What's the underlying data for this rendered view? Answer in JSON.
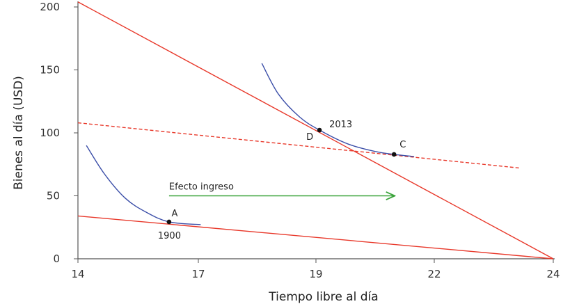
{
  "chart_data": {
    "type": "line",
    "xlabel": "Tiempo libre al día",
    "ylabel": "Bienes al día (USD)",
    "x_ticks": [
      14,
      17,
      19,
      22,
      24
    ],
    "y_ticks": [
      0,
      50,
      100,
      150,
      200
    ],
    "xlim": [
      14,
      24
    ],
    "ylim": [
      0,
      200
    ],
    "grid": false,
    "colors": {
      "budget": "#e8382a",
      "indifference": "#3b4ea8",
      "arrow": "#3aa33a",
      "axis": "#555555"
    },
    "budget_lines": [
      {
        "points": [
          [
            14,
            204
          ],
          [
            24,
            0
          ]
        ],
        "style": "solid"
      },
      {
        "points": [
          [
            14,
            34
          ],
          [
            24,
            0
          ]
        ],
        "style": "solid"
      },
      {
        "points": [
          [
            14,
            108
          ],
          [
            23.45,
            72
          ]
        ],
        "style": "dashed"
      }
    ],
    "indifference_curves": [
      {
        "points": [
          [
            14.21,
            90
          ],
          [
            14.66,
            67.4
          ],
          [
            15.18,
            48.1
          ],
          [
            15.7,
            37
          ],
          [
            16.27,
            29.3
          ],
          [
            17.04,
            27.1
          ]
        ]
      },
      {
        "points": [
          [
            18.08,
            155.2
          ],
          [
            18.36,
            130.9
          ],
          [
            18.72,
            112.7
          ],
          [
            19.09,
            102.2
          ],
          [
            19.81,
            91.2
          ],
          [
            20.52,
            85.1
          ],
          [
            20.98,
            82.9
          ],
          [
            21.49,
            81.2
          ]
        ]
      }
    ],
    "points": [
      {
        "label": "A",
        "year": "1900",
        "x": 16.27,
        "y": 29.3
      },
      {
        "label": "D",
        "year": "2013",
        "x": 19.09,
        "y": 102.2
      },
      {
        "label": "C",
        "year": "",
        "x": 20.98,
        "y": 82.9
      }
    ],
    "annotations": [
      {
        "text": "Efecto ingreso",
        "arrow_from": [
          16.27,
          50
        ],
        "arrow_to": [
          21.0,
          50
        ]
      }
    ]
  }
}
